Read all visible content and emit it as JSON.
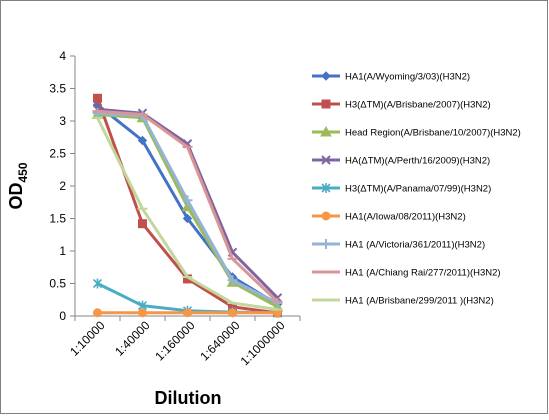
{
  "chart_data": {
    "type": "line",
    "title": "",
    "xlabel": "Dilution",
    "ylabel": "OD",
    "ylabel_sub": "450",
    "categories": [
      "1:10000",
      "1:40000",
      "1:160000",
      "1:640000",
      "1:1000000"
    ],
    "ylim": [
      0,
      4
    ],
    "yticks": [
      "0",
      "0.5",
      "1",
      "1.5",
      "2",
      "2.5",
      "3",
      "3.5",
      "4"
    ],
    "grid": false,
    "legend": "right",
    "series": [
      {
        "name": "HA1(A/Wyoming/3/03)(H3N2)",
        "color": "#4472C4",
        "marker": "diamond",
        "values": [
          3.25,
          2.7,
          1.5,
          0.6,
          0.18
        ]
      },
      {
        "name": "H3(ΔTM)(A/Brisbane/2007)(H3N2)",
        "color": "#C0504D",
        "marker": "square",
        "values": [
          3.35,
          1.42,
          0.57,
          0.14,
          0.05
        ]
      },
      {
        "name": "Head Region(A/Brisbane/10/2007)(H3N2)",
        "color": "#9BBB59",
        "marker": "triangle",
        "values": [
          3.1,
          3.05,
          1.68,
          0.52,
          0.14
        ]
      },
      {
        "name": "HA(ΔTM)(A/Perth/16/2009)(H3N2)",
        "color": "#8064A2",
        "marker": "x",
        "values": [
          3.18,
          3.12,
          2.65,
          0.98,
          0.28
        ]
      },
      {
        "name": "H3(ΔTM)(A/Panama/07/99)(H3N2)",
        "color": "#4BACC6",
        "marker": "asterisk",
        "values": [
          0.5,
          0.16,
          0.08,
          0.06,
          0.05
        ]
      },
      {
        "name": "HA1(A/Iowa/08/2011)(H3N2)",
        "color": "#F79646",
        "marker": "circle",
        "values": [
          0.05,
          0.05,
          0.05,
          0.05,
          0.05
        ]
      },
      {
        "name": "HA1 (A/Victoria/361/2011)(H3N2)",
        "color": "#95B3D7",
        "marker": "plus",
        "values": [
          3.12,
          3.08,
          1.78,
          0.55,
          0.2
        ]
      },
      {
        "name": "HA1 (A/Chiang Rai/277/2011)(H3N2)",
        "color": "#D99694",
        "marker": "line",
        "values": [
          3.15,
          3.1,
          2.6,
          0.88,
          0.22
        ]
      },
      {
        "name": "HA1 (A/Brisbane/299/2011 )(H3N2)",
        "color": "#C3D69B",
        "marker": "line",
        "values": [
          3.05,
          1.65,
          0.6,
          0.2,
          0.1
        ]
      }
    ]
  }
}
